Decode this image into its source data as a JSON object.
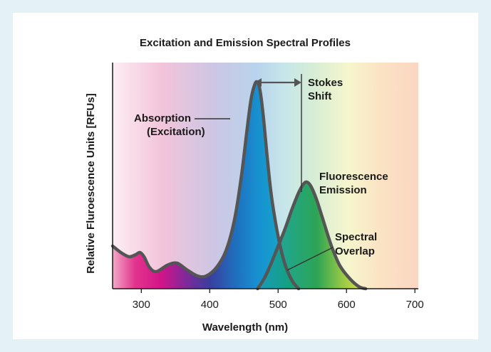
{
  "chart_data": {
    "type": "line",
    "title": "Excitation and Emission Spectral Profiles",
    "xlabel": "Wavelength (nm)",
    "ylabel": "Relative Fluroescence Units [RFUs]",
    "xlim": [
      258,
      705
    ],
    "ylim": [
      0,
      100
    ],
    "x_ticks": [
      300,
      400,
      500,
      600,
      700
    ],
    "series": [
      {
        "name": "Absorption (Excitation)",
        "x": [
          258,
          270,
          282,
          292,
          298,
          304,
          312,
          322,
          338,
          352,
          366,
          382,
          395,
          410,
          424,
          436,
          446,
          454,
          460,
          465,
          469,
          473,
          478,
          484,
          490,
          498,
          506,
          514,
          522,
          530
        ],
        "y": [
          20,
          17,
          15,
          16,
          17,
          15,
          10,
          8,
          11,
          12,
          9,
          6,
          6,
          10,
          18,
          32,
          52,
          73,
          88,
          95,
          97,
          94,
          82,
          62,
          44,
          28,
          16,
          8,
          3,
          0
        ]
      },
      {
        "name": "Fluorescence Emission",
        "x": [
          470,
          480,
          490,
          500,
          510,
          520,
          530,
          537,
          542,
          548,
          556,
          566,
          578,
          590,
          604,
          618,
          628
        ],
        "y": [
          0,
          5,
          12,
          20,
          28,
          37,
          45,
          49,
          50,
          48,
          42,
          32,
          20,
          11,
          5,
          1,
          0
        ]
      }
    ]
  },
  "annotations": {
    "absorption_line1": "Absorption",
    "absorption_line2": "(Excitation)",
    "stokes_line1": "Stokes",
    "stokes_line2": "Shift",
    "emission_line1": "Fluorescence",
    "emission_line2": "Emission",
    "overlap_line1": "Spectral",
    "overlap_line2": "Overlap"
  }
}
